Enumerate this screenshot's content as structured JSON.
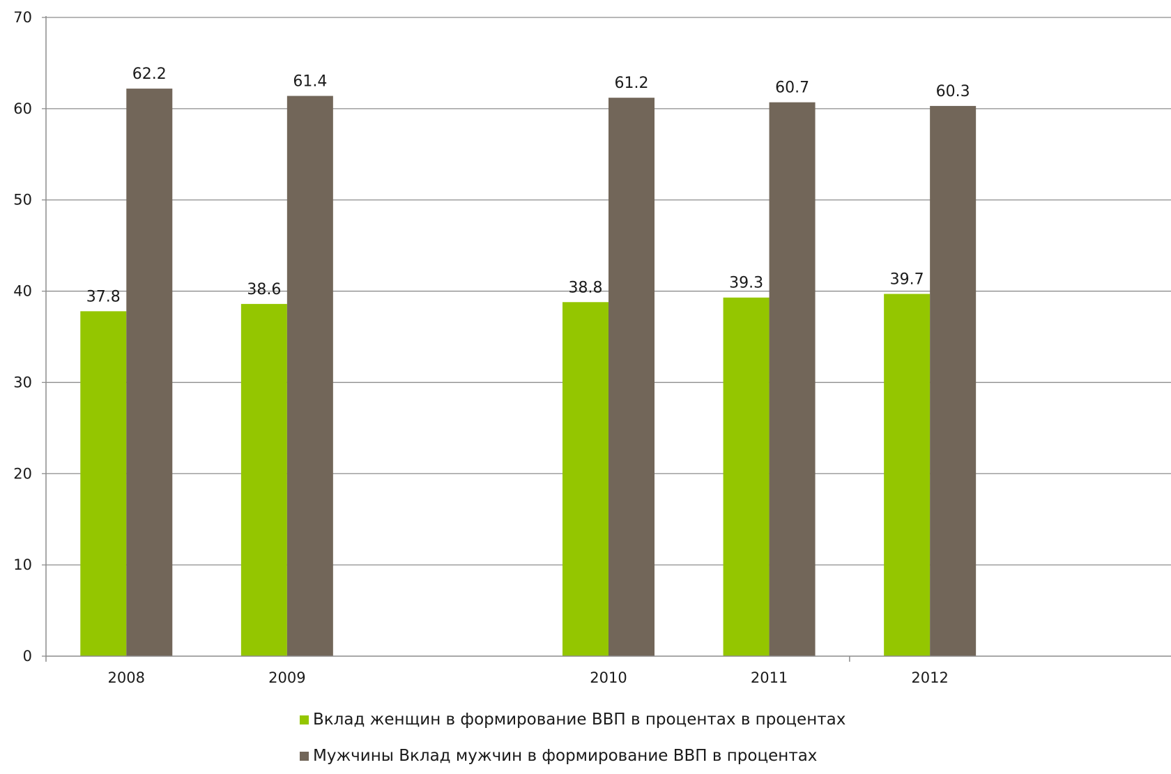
{
  "chart_data": {
    "type": "bar",
    "categories": [
      "2008",
      "2009",
      "",
      "2010",
      "2011",
      "2012",
      ""
    ],
    "series": [
      {
        "name": "Вклад женщин в формирование ВВП в процентах в процентах",
        "values": [
          37.8,
          38.6,
          null,
          38.8,
          39.3,
          39.7,
          null
        ],
        "labels": [
          "37.8",
          "38.6",
          "",
          "38.8",
          "39.3",
          "39.7",
          ""
        ],
        "color": "#94c600"
      },
      {
        "name": "Мужчины Вклад мужчин в формирование ВВП в процентах",
        "values": [
          62.2,
          61.4,
          null,
          61.2,
          60.7,
          60.3,
          null
        ],
        "labels": [
          "62.2",
          "61.4",
          "",
          "61.2",
          "60.7",
          "60.3",
          ""
        ],
        "color": "#726659"
      }
    ],
    "ylim": [
      0,
      70
    ],
    "yticks": [
      "0",
      "10",
      "20",
      "30",
      "40",
      "50",
      "60",
      "70"
    ],
    "grid": true,
    "legend_position": "bottom"
  }
}
